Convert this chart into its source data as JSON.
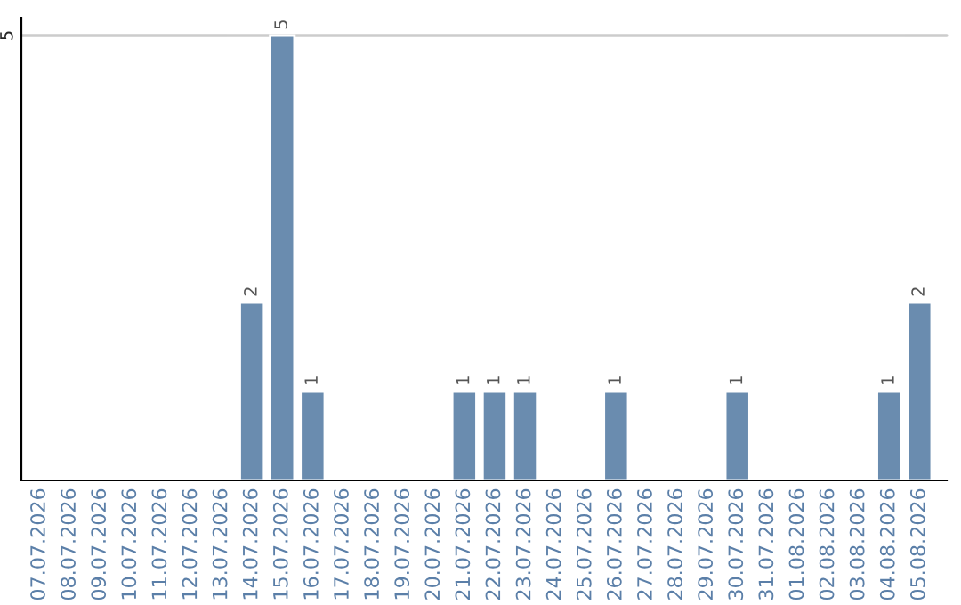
{
  "chart_data": {
    "type": "bar",
    "categories": [
      "07.07.2026",
      "08.07.2026",
      "09.07.2026",
      "10.07.2026",
      "11.07.2026",
      "12.07.2026",
      "13.07.2026",
      "14.07.2026",
      "15.07.2026",
      "16.07.2026",
      "17.07.2026",
      "18.07.2026",
      "19.07.2026",
      "20.07.2026",
      "21.07.2026",
      "22.07.2026",
      "23.07.2026",
      "24.07.2026",
      "25.07.2026",
      "26.07.2026",
      "27.07.2026",
      "28.07.2026",
      "29.07.2026",
      "30.07.2026",
      "31.07.2026",
      "01.08.2026",
      "02.08.2026",
      "03.08.2026",
      "04.08.2026",
      "05.08.2026"
    ],
    "values": [
      null,
      null,
      null,
      null,
      null,
      null,
      null,
      2,
      5,
      1,
      null,
      null,
      null,
      null,
      1,
      1,
      1,
      null,
      null,
      1,
      null,
      null,
      null,
      1,
      null,
      null,
      null,
      null,
      1,
      2
    ],
    "color": "#6a8caf",
    "ylim": [
      0,
      5.2
    ],
    "yticks": [
      5
    ],
    "grid": "y",
    "data_labels": true,
    "legend": false
  }
}
